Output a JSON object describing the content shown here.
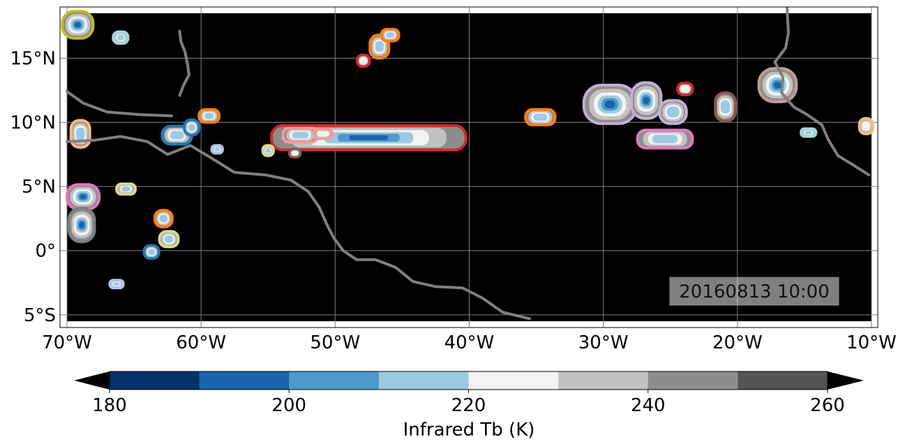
{
  "map": {
    "extent": {
      "lon_min": -70,
      "lon_max": -10,
      "lat_min": -5.5,
      "lat_max": 18.5
    },
    "lon_ticks": [
      {
        "value": -70,
        "label": "70°W"
      },
      {
        "value": -60,
        "label": "60°W"
      },
      {
        "value": -50,
        "label": "50°W"
      },
      {
        "value": -40,
        "label": "40°W"
      },
      {
        "value": -30,
        "label": "30°W"
      },
      {
        "value": -20,
        "label": "20°W"
      },
      {
        "value": -10,
        "label": "10°W"
      }
    ],
    "lat_ticks": [
      {
        "value": 15,
        "label": "15°N"
      },
      {
        "value": 10,
        "label": "10°N"
      },
      {
        "value": 5,
        "label": "5°N"
      },
      {
        "value": 0,
        "label": "0°"
      },
      {
        "value": -5,
        "label": "5°S"
      }
    ],
    "timestamp": "20160813 10:00",
    "background_color": "#000000",
    "coastline_color": "#808080",
    "gridline_color": "#808080"
  },
  "colorbar": {
    "label": "Infrared Tb (K)",
    "min": 180,
    "max": 260,
    "tick_labels": [
      {
        "value": 180,
        "label": "180"
      },
      {
        "value": 200,
        "label": "200"
      },
      {
        "value": 220,
        "label": "220"
      },
      {
        "value": 240,
        "label": "240"
      },
      {
        "value": 260,
        "label": "260"
      }
    ],
    "levels": [
      {
        "from": 180,
        "to": 190,
        "color": "#08306b"
      },
      {
        "from": 190,
        "to": 200,
        "color": "#1a64ad"
      },
      {
        "from": 200,
        "to": 210,
        "color": "#4c99cc"
      },
      {
        "from": 210,
        "to": 220,
        "color": "#9ec9e2"
      },
      {
        "from": 220,
        "to": 230,
        "color": "#f2f2f2"
      },
      {
        "from": 230,
        "to": 240,
        "color": "#c2c2c2"
      },
      {
        "from": 240,
        "to": 250,
        "color": "#8d8d8d"
      },
      {
        "from": 250,
        "to": 260,
        "color": "#545454"
      }
    ],
    "extend_low_color": "#000000",
    "extend_high_color": "#000000"
  },
  "systems": [
    {
      "lon": -47.5,
      "lat": 8.8,
      "w": 14.5,
      "h": 1.9,
      "outline": "#d62728",
      "core": 3
    },
    {
      "lon": -29.5,
      "lat": 11.4,
      "w": 3.9,
      "h": 3.0,
      "outline": "#c5b0d5",
      "core": 4
    },
    {
      "lon": -26.8,
      "lat": 11.7,
      "w": 2.2,
      "h": 2.8,
      "outline": "#c5b0d5",
      "core": 3
    },
    {
      "lon": -24.8,
      "lat": 10.8,
      "w": 2.0,
      "h": 1.8,
      "outline": "#c5b0d5",
      "core": 1
    },
    {
      "lon": -23.9,
      "lat": 12.6,
      "w": 1.1,
      "h": 0.9,
      "outline": "#d62728",
      "core": 0
    },
    {
      "lon": -20.9,
      "lat": 11.2,
      "w": 1.5,
      "h": 2.2,
      "outline": "#8c564b",
      "core": 1
    },
    {
      "lon": -25.4,
      "lat": 8.7,
      "w": 4.1,
      "h": 1.4,
      "outline": "#e377c2",
      "core": 1
    },
    {
      "lon": -17.0,
      "lat": 12.9,
      "w": 2.8,
      "h": 2.6,
      "outline": "#c49c94",
      "core": 3
    },
    {
      "lon": -14.7,
      "lat": 9.2,
      "w": 1.1,
      "h": 0.6,
      "outline": "#9edae5",
      "core": 1
    },
    {
      "lon": -10.4,
      "lat": 9.7,
      "w": 1.0,
      "h": 1.2,
      "outline": "#ffbb78",
      "core": 0
    },
    {
      "lon": -34.7,
      "lat": 10.4,
      "w": 2.2,
      "h": 1.2,
      "outline": "#ff7f0e",
      "core": 1
    },
    {
      "lon": -52.6,
      "lat": 9.0,
      "w": 2.6,
      "h": 1.1,
      "outline": "#ff9896",
      "core": 1
    },
    {
      "lon": -50.9,
      "lat": 9.1,
      "w": 1.4,
      "h": 0.7,
      "outline": "#ff9896",
      "core": 0
    },
    {
      "lon": -53.0,
      "lat": 7.6,
      "w": 0.8,
      "h": 0.6,
      "outline": "#8c564b",
      "core": 0
    },
    {
      "lon": -55.0,
      "lat": 7.8,
      "w": 0.8,
      "h": 0.8,
      "outline": "#dbdb8d",
      "core": 1
    },
    {
      "lon": -46.7,
      "lat": 15.9,
      "w": 1.4,
      "h": 1.8,
      "outline": "#ff7f0e",
      "core": 1
    },
    {
      "lon": -45.9,
      "lat": 16.8,
      "w": 1.3,
      "h": 0.9,
      "outline": "#ff7f0e",
      "core": 1
    },
    {
      "lon": -47.9,
      "lat": 14.8,
      "w": 0.9,
      "h": 0.9,
      "outline": "#d62728",
      "core": 0
    },
    {
      "lon": -61.8,
      "lat": 9.0,
      "w": 2.2,
      "h": 1.4,
      "outline": "#1f77b4",
      "core": 1
    },
    {
      "lon": -60.7,
      "lat": 9.6,
      "w": 1.1,
      "h": 1.2,
      "outline": "#1f77b4",
      "core": 1
    },
    {
      "lon": -58.8,
      "lat": 7.9,
      "w": 0.8,
      "h": 0.6,
      "outline": "#aec7e8",
      "core": 1
    },
    {
      "lon": -59.4,
      "lat": 10.5,
      "w": 1.5,
      "h": 1.0,
      "outline": "#ff7f0e",
      "core": 1
    },
    {
      "lon": -69.2,
      "lat": 17.6,
      "w": 2.3,
      "h": 2.1,
      "outline": "#bcbd22",
      "core": 3
    },
    {
      "lon": -66.0,
      "lat": 16.6,
      "w": 1.1,
      "h": 0.9,
      "outline": "#9edae5",
      "core": 1
    },
    {
      "lon": -69.0,
      "lat": 9.1,
      "w": 1.4,
      "h": 2.1,
      "outline": "#ffbb78",
      "core": 1
    },
    {
      "lon": -68.8,
      "lat": 4.2,
      "w": 2.4,
      "h": 1.9,
      "outline": "#e377c2",
      "core": 3
    },
    {
      "lon": -68.9,
      "lat": 2.0,
      "w": 1.9,
      "h": 2.6,
      "outline": "#7f7f7f",
      "core": 3
    },
    {
      "lon": -65.6,
      "lat": 4.8,
      "w": 1.4,
      "h": 0.8,
      "outline": "#dbdb8d",
      "core": 1
    },
    {
      "lon": -62.8,
      "lat": 2.5,
      "w": 1.3,
      "h": 1.3,
      "outline": "#ff7f0e",
      "core": 1
    },
    {
      "lon": -62.4,
      "lat": 0.9,
      "w": 1.4,
      "h": 1.2,
      "outline": "#dbdb8d",
      "core": 1
    },
    {
      "lon": -63.7,
      "lat": -0.1,
      "w": 1.1,
      "h": 1.0,
      "outline": "#1f77b4",
      "core": 1
    },
    {
      "lon": -66.3,
      "lat": -2.6,
      "w": 1.0,
      "h": 0.6,
      "outline": "#aec7e8",
      "core": 1
    }
  ],
  "coastlines": [
    {
      "id": "south-america",
      "points": [
        [
          -70,
          8.5
        ],
        [
          -68,
          8.6
        ],
        [
          -66,
          8.9
        ],
        [
          -64,
          8.5
        ],
        [
          -62.5,
          7.5
        ],
        [
          -60.8,
          8.2
        ],
        [
          -59.2,
          7.2
        ],
        [
          -57.5,
          6.1
        ],
        [
          -55.2,
          5.9
        ],
        [
          -53.3,
          5.5
        ],
        [
          -52,
          4.6
        ],
        [
          -51.2,
          3.4
        ],
        [
          -50.6,
          2
        ],
        [
          -50.1,
          1
        ],
        [
          -49.4,
          0
        ],
        [
          -48.4,
          -0.7
        ],
        [
          -47,
          -0.7
        ],
        [
          -45.5,
          -1.3
        ],
        [
          -44.2,
          -2.4
        ],
        [
          -42.5,
          -2.8
        ],
        [
          -40.5,
          -2.9
        ],
        [
          -39,
          -3.7
        ],
        [
          -37.5,
          -4.8
        ],
        [
          -35.5,
          -5.3
        ]
      ]
    },
    {
      "id": "lesser-antilles",
      "points": [
        [
          -61.6,
          17.1
        ],
        [
          -61.5,
          16.3
        ],
        [
          -61.2,
          15.5
        ],
        [
          -61.0,
          14.5
        ],
        [
          -60.9,
          13.7
        ],
        [
          -61.3,
          12.9
        ],
        [
          -61.6,
          12.1
        ]
      ]
    },
    {
      "id": "central-america",
      "points": [
        [
          -70,
          12.4
        ],
        [
          -68.8,
          11.5
        ],
        [
          -67,
          10.8
        ],
        [
          -64.5,
          10.6
        ],
        [
          -62.2,
          10.5
        ]
      ]
    },
    {
      "id": "west-africa",
      "points": [
        [
          -16.3,
          19.0
        ],
        [
          -16.2,
          17.0
        ],
        [
          -16.4,
          15.8
        ],
        [
          -17.2,
          14.7
        ],
        [
          -16.6,
          13.5
        ],
        [
          -16.7,
          12.3
        ],
        [
          -15.8,
          11.2
        ],
        [
          -14.8,
          10.6
        ],
        [
          -13.7,
          9.8
        ],
        [
          -13.2,
          8.6
        ],
        [
          -12.5,
          7.4
        ],
        [
          -11.4,
          6.7
        ],
        [
          -10.2,
          5.9
        ]
      ]
    }
  ]
}
